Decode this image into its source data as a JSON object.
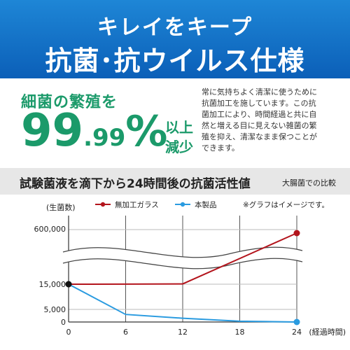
{
  "banner": {
    "line1": "キレイをキープ",
    "line2": "抗菌･抗ウイルス仕様"
  },
  "rate": {
    "heading": "細菌の繁殖を",
    "value_int": "99",
    "value_dec": ".99",
    "value_pct": "%",
    "suffix_line1": "以上",
    "suffix_line2": "減少"
  },
  "description": {
    "lines": [
      "常に気持ちよく清潔に使うために",
      "抗菌加工を施しています。この抗",
      "菌加工により、時間経過と共に自",
      "然と増える目に見えない雑菌の繁",
      "殖を抑え、清潔なまま保つことが",
      "できます。"
    ]
  },
  "section": {
    "title": "試験菌液を滴下から24時間後の抗菌活性値",
    "note": "大腸菌での比較"
  },
  "colors": {
    "banner": "#0b5fb8",
    "accent_green": "#1b9a6a",
    "series_red": "#b3141c",
    "series_blue": "#2a9be0"
  },
  "chart_data": {
    "type": "line",
    "ylabel": "(生菌数)",
    "xlabel": "(経過時間)",
    "note": "※グラフはイメージです。",
    "y_axis_break": true,
    "y_ticks": [
      "0",
      "5,000",
      "15,000",
      "600,000"
    ],
    "x": [
      0,
      6,
      12,
      18,
      24
    ],
    "x_tick_labels": [
      "0",
      "6",
      "12",
      "18",
      "24"
    ],
    "series": [
      {
        "name": "無加工ガラス",
        "color": "#b3141c",
        "points": [
          {
            "x": 0,
            "y": 15000
          },
          {
            "x": 6,
            "y": 16000
          },
          {
            "x": 12,
            "y": 20000
          },
          {
            "x": 24,
            "y": 600000
          }
        ]
      },
      {
        "name": "本製品",
        "color": "#2a9be0",
        "points": [
          {
            "x": 0,
            "y": 15000
          },
          {
            "x": 6,
            "y": 3000
          },
          {
            "x": 12,
            "y": 1500
          },
          {
            "x": 18,
            "y": 300
          },
          {
            "x": 24,
            "y": 0
          }
        ]
      }
    ]
  }
}
